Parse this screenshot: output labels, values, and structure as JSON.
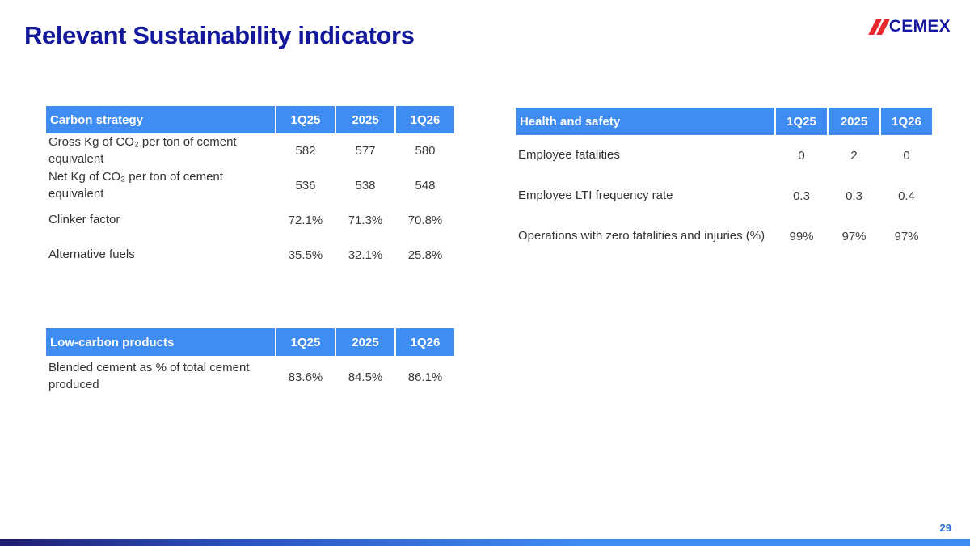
{
  "slide": {
    "title": "Relevant Sustainability indicators",
    "page_number": "29",
    "logo_text": "CEMEX"
  },
  "colors": {
    "title_navy": "#14189d",
    "table_header_blue": "#3f8cf3",
    "logo_red": "#e8262d",
    "footer_gradient_start": "#201c70",
    "footer_gradient_end": "#3f8cf3"
  },
  "tables": {
    "carbon_strategy": {
      "title": "Carbon strategy",
      "columns": [
        "1Q25",
        "2025",
        "1Q26"
      ],
      "rows": [
        {
          "label": "Gross Kg of CO₂ per ton of cement equivalent",
          "values": [
            "582",
            "577",
            "580"
          ]
        },
        {
          "label": "Net Kg of CO₂ per ton of cement equivalent",
          "values": [
            "536",
            "538",
            "548"
          ]
        },
        {
          "label": "Clinker factor",
          "values": [
            "72.1%",
            "71.3%",
            "70.8%"
          ]
        },
        {
          "label": "Alternative fuels",
          "values": [
            "35.5%",
            "32.1%",
            "25.8%"
          ]
        }
      ]
    },
    "health_safety": {
      "title": "Health and safety",
      "columns": [
        "1Q25",
        "2025",
        "1Q26"
      ],
      "rows": [
        {
          "label": "Employee fatalities",
          "values": [
            "0",
            "2",
            "0"
          ]
        },
        {
          "label": "Employee LTI frequency rate",
          "values": [
            "0.3",
            "0.3",
            "0.4"
          ]
        },
        {
          "label": "Operations with zero fatalities and injuries (%)",
          "values": [
            "99%",
            "97%",
            "97%"
          ]
        }
      ]
    },
    "low_carbon_products": {
      "title": "Low-carbon products",
      "columns": [
        "1Q25",
        "2025",
        "1Q26"
      ],
      "rows": [
        {
          "label": "Blended cement as % of total cement produced",
          "values": [
            "83.6%",
            "84.5%",
            "86.1%"
          ]
        }
      ]
    }
  }
}
